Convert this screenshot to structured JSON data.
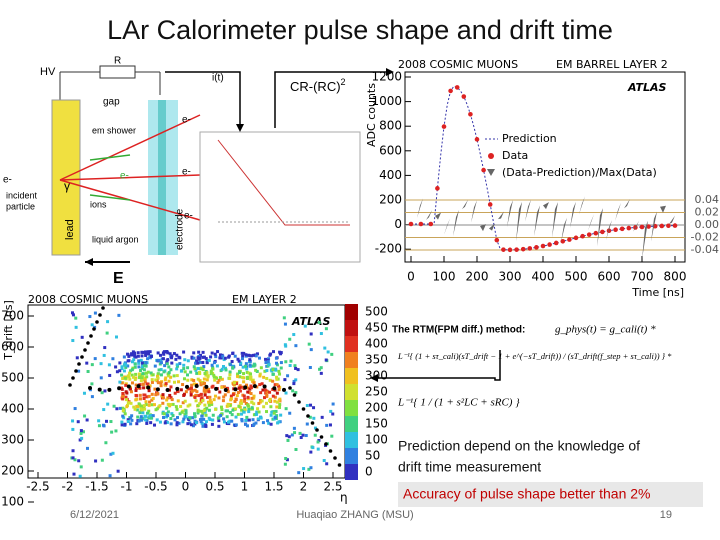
{
  "slide": {
    "title": "LAr Calorimeter pulse shape and drift time",
    "footer": {
      "date": "6/12/2021",
      "author": "Huaqiao ZHANG (MSU)",
      "page": "19"
    }
  },
  "diagram": {
    "labels": {
      "hv": "HV",
      "r": "R",
      "current": "i(t)",
      "gap": "gap",
      "em_shower": "em shower",
      "electron": "e-",
      "incident": "incident",
      "particle": "particle",
      "gamma": "γ",
      "ions": "ions",
      "lead": "lead",
      "liquid_argon": "liquid argon",
      "electrode": "electrode",
      "field": "E"
    },
    "shaping": {
      "text": "CR-(RC)",
      "sup": "2"
    }
  },
  "pulse_plot": {
    "title_left": "2008 COSMIC MUONS",
    "title_right": "EM BARREL LAYER 2",
    "experiment": "ATLAS",
    "ylabel": "ADC counts",
    "xlabel": "Time [ns]",
    "yticks": [
      "1200",
      "1000",
      "800",
      "600",
      "400",
      "200",
      "0",
      "-200"
    ],
    "xticks": [
      "0",
      "100",
      "200",
      "300",
      "400",
      "500",
      "600",
      "700",
      "800"
    ],
    "y2ticks": [
      "0.04",
      "0.02",
      "0.00",
      "-0.02",
      "-0.04"
    ],
    "legend": [
      "Prediction",
      "Data",
      "(Data-Prediction)/Max(Data)"
    ]
  },
  "drift_plot": {
    "title_left": "2008 COSMIC MUONS",
    "title_right": "EM LAYER 2",
    "experiment": "ATLAS",
    "ylabel": "T_drift [ns]",
    "xlabel": "η",
    "yticks": [
      "700",
      "600",
      "500",
      "400",
      "300",
      "200",
      "100"
    ],
    "xticks": [
      "-2.5",
      "-2",
      "-1.5",
      "-1",
      "-0.5",
      "0",
      "0.5",
      "1",
      "1.5",
      "2",
      "2.5"
    ],
    "colorbar": [
      "500",
      "450",
      "400",
      "350",
      "300",
      "250",
      "200",
      "150",
      "100",
      "50",
      "0"
    ]
  },
  "method": {
    "heading": "The RTM(FPM diff.) method:",
    "formulas": [
      "g_phys(t) = g_cali(t) *",
      "L⁻¹{ (1 + sτ_cali)(sT_drift − 1 + e^(−sT_drift)) / (sT_drift(f_step + sτ_cali)) } *",
      "L⁻¹{ 1 / (1 + s²LC + sRC) }"
    ]
  },
  "notes": {
    "prediction": [
      "Prediction depend on the knowledge of",
      "drift time measurement"
    ],
    "accuracy": "Accuracy of pulse shape better than 2%"
  }
}
